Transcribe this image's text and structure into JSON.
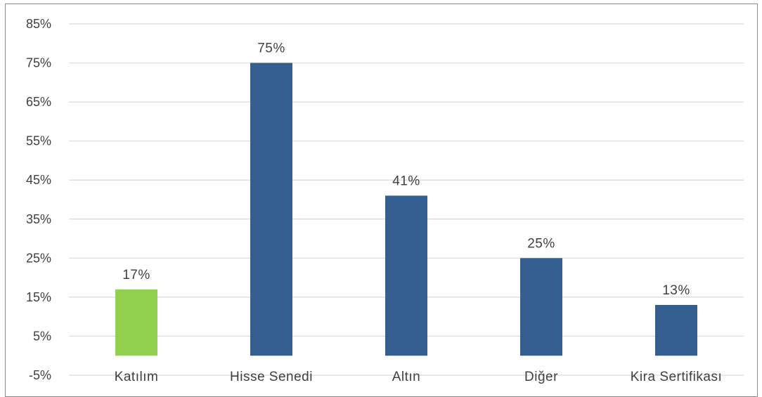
{
  "chart_data": {
    "type": "bar",
    "title": "",
    "xlabel": "",
    "ylabel": "",
    "categories": [
      "Katılım",
      "Hisse Senedi",
      "Altın",
      "Diğer",
      "Kira Sertifikası"
    ],
    "values": [
      17,
      75,
      41,
      25,
      13
    ],
    "data_labels": [
      "17%",
      "75%",
      "41%",
      "25%",
      "13%"
    ],
    "bar_colors": [
      "#92d050",
      "#335e8f",
      "#335e8f",
      "#335e8f",
      "#335e8f"
    ],
    "ylim": [
      -5,
      85
    ],
    "y_ticks": [
      -5,
      5,
      15,
      25,
      35,
      45,
      55,
      65,
      75,
      85
    ],
    "y_tick_labels": [
      "-5%",
      "5%",
      "15%",
      "25%",
      "35%",
      "45%",
      "55%",
      "65%",
      "75%",
      "85%"
    ],
    "grid": true,
    "gridline_color": "#d9d9d9",
    "legend": "none"
  }
}
